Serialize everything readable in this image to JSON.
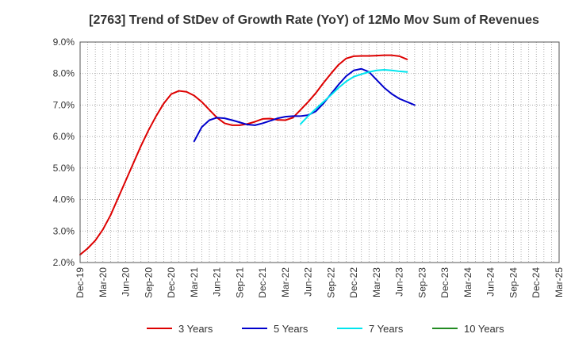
{
  "chart_data": {
    "type": "line",
    "title": "[2763]  Trend of StDev of Growth Rate (YoY) of 12Mo Mov Sum of Revenues",
    "xlabel": "",
    "ylabel": "",
    "ylim": [
      2.0,
      9.0
    ],
    "y_ticks": [
      2.0,
      3.0,
      4.0,
      5.0,
      6.0,
      7.0,
      8.0,
      9.0
    ],
    "y_tick_labels": [
      "2.0%",
      "3.0%",
      "4.0%",
      "5.0%",
      "6.0%",
      "7.0%",
      "8.0%",
      "9.0%"
    ],
    "x_tick_labels": [
      "Dec-19",
      "Mar-20",
      "Jun-20",
      "Sep-20",
      "Dec-20",
      "Mar-21",
      "Jun-21",
      "Sep-21",
      "Dec-21",
      "Mar-22",
      "Jun-22",
      "Sep-22",
      "Dec-22",
      "Mar-23",
      "Jun-23",
      "Sep-23",
      "Dec-23",
      "Mar-24",
      "Jun-24",
      "Sep-24",
      "Dec-24",
      "Mar-25"
    ],
    "grid": true,
    "legend_position": "bottom",
    "series": [
      {
        "name": "3 Years",
        "color": "#dd0000",
        "points": [
          [
            0,
            2.25
          ],
          [
            1,
            2.45
          ],
          [
            2,
            2.7
          ],
          [
            3,
            3.05
          ],
          [
            4,
            3.5
          ],
          [
            5,
            4.05
          ],
          [
            6,
            4.6
          ],
          [
            7,
            5.15
          ],
          [
            8,
            5.7
          ],
          [
            9,
            6.2
          ],
          [
            10,
            6.65
          ],
          [
            11,
            7.05
          ],
          [
            12,
            7.35
          ],
          [
            13,
            7.45
          ],
          [
            14,
            7.42
          ],
          [
            15,
            7.3
          ],
          [
            16,
            7.1
          ],
          [
            17,
            6.85
          ],
          [
            18,
            6.6
          ],
          [
            19,
            6.42
          ],
          [
            20,
            6.36
          ],
          [
            21,
            6.36
          ],
          [
            22,
            6.4
          ],
          [
            23,
            6.47
          ],
          [
            24,
            6.56
          ],
          [
            25,
            6.57
          ],
          [
            26,
            6.53
          ],
          [
            27,
            6.52
          ],
          [
            28,
            6.6
          ],
          [
            29,
            6.85
          ],
          [
            30,
            7.1
          ],
          [
            31,
            7.38
          ],
          [
            32,
            7.7
          ],
          [
            33,
            8.0
          ],
          [
            34,
            8.28
          ],
          [
            35,
            8.48
          ],
          [
            36,
            8.55
          ],
          [
            37,
            8.56
          ],
          [
            38,
            8.56
          ],
          [
            39,
            8.57
          ],
          [
            40,
            8.58
          ],
          [
            41,
            8.58
          ],
          [
            42,
            8.55
          ],
          [
            43,
            8.45
          ]
        ]
      },
      {
        "name": "5 Years",
        "color": "#0000cc",
        "points": [
          [
            15,
            5.85
          ],
          [
            16,
            6.3
          ],
          [
            17,
            6.52
          ],
          [
            18,
            6.6
          ],
          [
            19,
            6.58
          ],
          [
            20,
            6.52
          ],
          [
            21,
            6.45
          ],
          [
            22,
            6.38
          ],
          [
            23,
            6.36
          ],
          [
            24,
            6.42
          ],
          [
            25,
            6.5
          ],
          [
            26,
            6.58
          ],
          [
            27,
            6.63
          ],
          [
            28,
            6.65
          ],
          [
            29,
            6.65
          ],
          [
            30,
            6.68
          ],
          [
            31,
            6.8
          ],
          [
            32,
            7.05
          ],
          [
            33,
            7.35
          ],
          [
            34,
            7.65
          ],
          [
            35,
            7.92
          ],
          [
            36,
            8.1
          ],
          [
            37,
            8.15
          ],
          [
            38,
            8.05
          ],
          [
            39,
            7.8
          ],
          [
            40,
            7.55
          ],
          [
            41,
            7.35
          ],
          [
            42,
            7.2
          ],
          [
            43,
            7.1
          ],
          [
            44,
            7.0
          ]
        ]
      },
      {
        "name": "7 Years",
        "color": "#00e5ee",
        "points": [
          [
            29,
            6.4
          ],
          [
            30,
            6.65
          ],
          [
            31,
            6.88
          ],
          [
            32,
            7.1
          ],
          [
            33,
            7.32
          ],
          [
            34,
            7.55
          ],
          [
            35,
            7.75
          ],
          [
            36,
            7.9
          ],
          [
            37,
            7.98
          ],
          [
            38,
            8.05
          ],
          [
            39,
            8.1
          ],
          [
            40,
            8.12
          ],
          [
            41,
            8.1
          ],
          [
            42,
            8.07
          ],
          [
            43,
            8.05
          ]
        ]
      },
      {
        "name": "10 Years",
        "color": "#228b22",
        "points": []
      }
    ]
  }
}
